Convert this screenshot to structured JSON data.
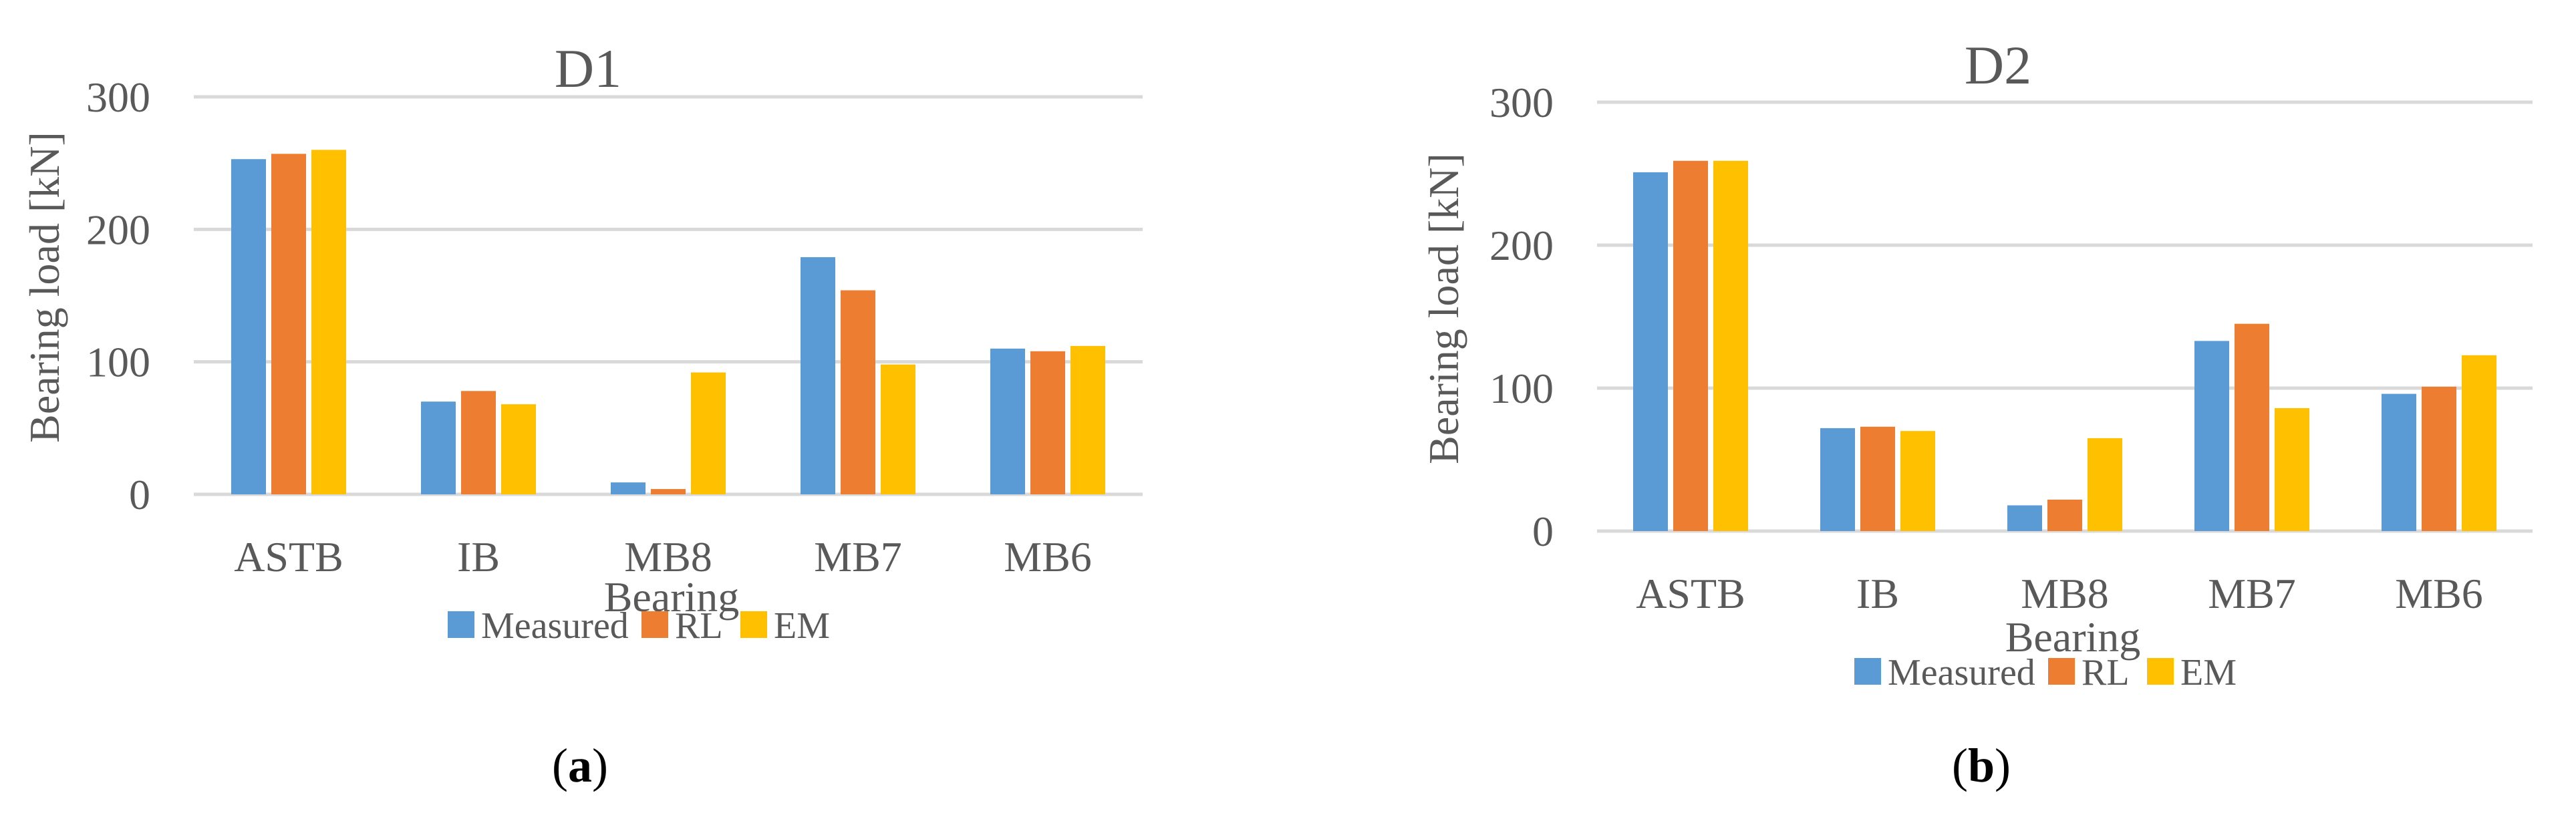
{
  "colors": {
    "Measured": "#5b9bd5",
    "RL": "#ed7d31",
    "EM": "#ffc000",
    "text": "#595959",
    "grid": "#d9d9d9"
  },
  "chart_data": [
    {
      "type": "bar",
      "title": "D1",
      "xlabel": "Bearing",
      "ylabel": "Bearing load [kN]",
      "ylim": [
        0,
        300
      ],
      "yticks": [
        "0",
        "100",
        "200",
        "300"
      ],
      "categories": [
        "ASTB",
        "IB",
        "MB8",
        "MB7",
        "MB6"
      ],
      "series": [
        {
          "name": "Measured",
          "values": [
            253,
            70,
            9,
            179,
            110
          ]
        },
        {
          "name": "RL",
          "values": [
            257,
            78,
            4,
            154,
            108
          ]
        },
        {
          "name": "EM",
          "values": [
            260,
            68,
            92,
            98,
            112
          ]
        }
      ],
      "legend": "bottom",
      "grid": true,
      "caption_open": "(",
      "caption_letter": "a",
      "caption_close": ")"
    },
    {
      "type": "bar",
      "title": "D2",
      "xlabel": "Bearing",
      "ylabel": "Bearing load [kN]",
      "ylim": [
        0,
        300
      ],
      "yticks": [
        "0",
        "100",
        "200",
        "300"
      ],
      "categories": [
        "ASTB",
        "IB",
        "MB8",
        "MB7",
        "MB6"
      ],
      "series": [
        {
          "name": "Measured",
          "values": [
            251,
            72,
            18,
            133,
            96
          ]
        },
        {
          "name": "RL",
          "values": [
            259,
            73,
            22,
            145,
            101
          ]
        },
        {
          "name": "EM",
          "values": [
            259,
            70,
            65,
            86,
            123
          ]
        }
      ],
      "legend": "bottom",
      "grid": true,
      "caption_open": "(",
      "caption_letter": "b",
      "caption_close": ")"
    }
  ]
}
